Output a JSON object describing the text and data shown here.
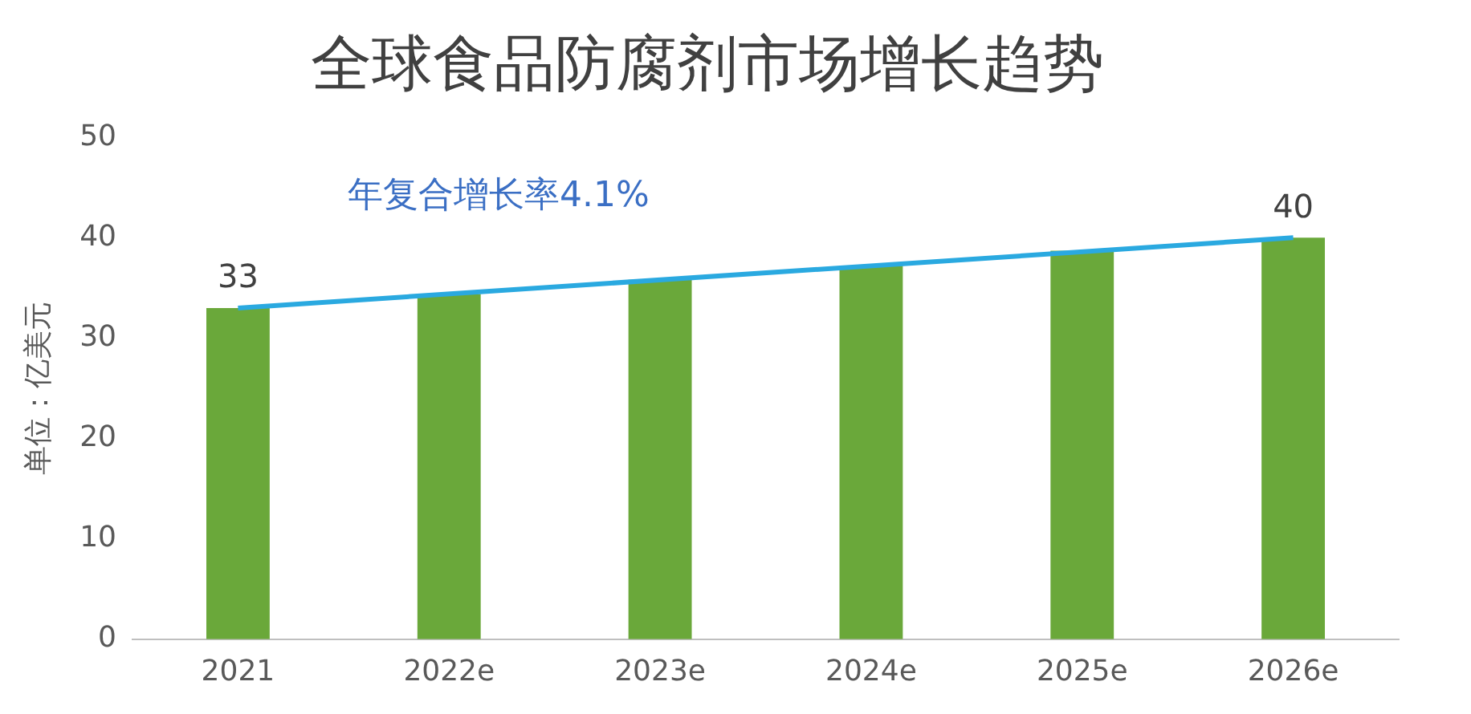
{
  "chart_data": {
    "type": "bar",
    "title": "全球食品防腐剂市场增长趋势",
    "ylabel": "单位：亿美元",
    "categories": [
      "2021",
      "2022e",
      "2023e",
      "2024e",
      "2025e",
      "2026e"
    ],
    "series": [
      {
        "color": "#6aa83a",
        "values": [
          33,
          34.4,
          35.8,
          37.2,
          38.7,
          40
        ],
        "value_labels": [
          "33",
          null,
          null,
          null,
          null,
          "40"
        ]
      },
      {
        "type": "line",
        "color": "#2aa9e0",
        "values": [
          33,
          null,
          null,
          null,
          null,
          40
        ]
      }
    ],
    "ylim": [
      0,
      50
    ],
    "yticks": [
      0,
      10,
      20,
      30,
      40,
      50
    ],
    "grid": false,
    "legend": false,
    "annotations": [
      "年复合增长率4.1%"
    ]
  }
}
